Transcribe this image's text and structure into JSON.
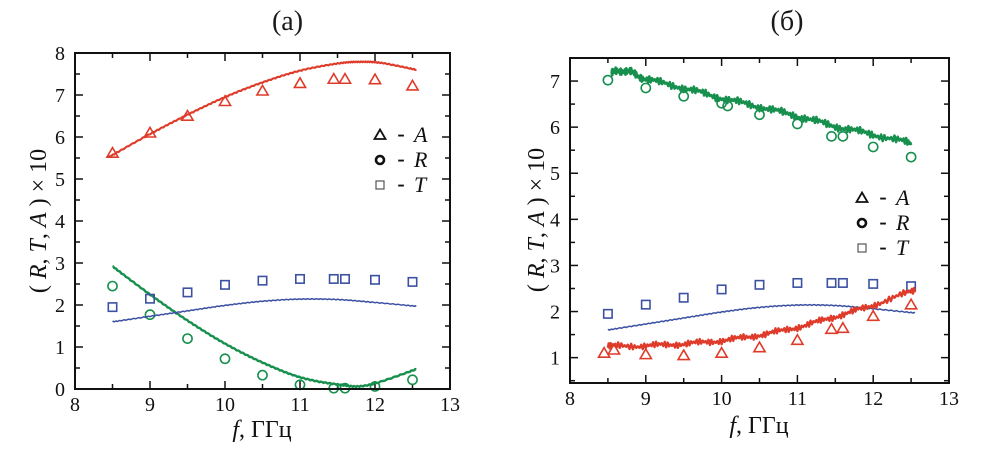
{
  "chart_data": [
    {
      "type": "line",
      "id": "a",
      "title": "(a)",
      "xlabel": "f, ГГц",
      "ylabel": "( R, T, A ) × 10",
      "xlabel_parts": [
        {
          "t": "f",
          "i": true
        },
        {
          "t": ", ГГц",
          "i": false
        }
      ],
      "ylabel_parts": [
        {
          "t": "( ",
          "i": false
        },
        {
          "t": "R",
          "i": true
        },
        {
          "t": ", ",
          "i": false
        },
        {
          "t": "T",
          "i": true
        },
        {
          "t": ", ",
          "i": false
        },
        {
          "t": "A",
          "i": true
        },
        {
          "t": " ) × 10",
          "i": false
        }
      ],
      "xlim": [
        8,
        13
      ],
      "ylim": [
        0,
        8
      ],
      "xticks": [
        8,
        9,
        10,
        11,
        12,
        13
      ],
      "yticks": [
        0,
        1,
        2,
        3,
        4,
        5,
        6,
        7,
        8
      ],
      "minor_step": 0.5,
      "grid": false,
      "legend": {
        "separator": "-",
        "rows": [
          {
            "symbol": "triangle",
            "label": "A"
          },
          {
            "symbol": "circle",
            "label": "R"
          },
          {
            "symbol": "square",
            "label": "T"
          }
        ]
      },
      "series": [
        {
          "name": "A-model-line",
          "type": "line",
          "color": "#df3b2a",
          "width": 2.1,
          "noise": 0.012,
          "points": [
            [
              8.45,
              5.52
            ],
            [
              9,
              6.07
            ],
            [
              9.5,
              6.53
            ],
            [
              10,
              6.95
            ],
            [
              10.5,
              7.3
            ],
            [
              11,
              7.58
            ],
            [
              11.5,
              7.75
            ],
            [
              11.8,
              7.79
            ],
            [
              12.1,
              7.76
            ],
            [
              12.55,
              7.6
            ]
          ]
        },
        {
          "name": "A-experiment-triangles",
          "type": "markers",
          "marker": "triangle",
          "color": "#df3b2a",
          "points": [
            [
              8.5,
              5.62
            ],
            [
              9,
              6.1
            ],
            [
              9.5,
              6.5
            ],
            [
              10,
              6.85
            ],
            [
              10.5,
              7.1
            ],
            [
              11,
              7.28
            ],
            [
              11.45,
              7.38
            ],
            [
              11.6,
              7.38
            ],
            [
              12,
              7.37
            ],
            [
              12.5,
              7.22
            ]
          ]
        },
        {
          "name": "R-model-line",
          "type": "line",
          "color": "#17904e",
          "width": 2.4,
          "noise": 0.012,
          "points": [
            [
              8.5,
              2.92
            ],
            [
              9,
              2.25
            ],
            [
              9.5,
              1.63
            ],
            [
              10,
              1.08
            ],
            [
              10.5,
              0.63
            ],
            [
              11,
              0.28
            ],
            [
              11.5,
              0.11
            ],
            [
              11.9,
              0.09
            ],
            [
              12.55,
              0.47
            ]
          ]
        },
        {
          "name": "R-experiment-circles",
          "type": "markers",
          "marker": "circle",
          "color": "#17904e",
          "points": [
            [
              8.5,
              2.45
            ],
            [
              9,
              1.77
            ],
            [
              9.5,
              1.2
            ],
            [
              10,
              0.72
            ],
            [
              10.5,
              0.33
            ],
            [
              11,
              0.1
            ],
            [
              11.45,
              0.02
            ],
            [
              11.6,
              0.02
            ],
            [
              12,
              0.06
            ],
            [
              12.5,
              0.22
            ]
          ]
        },
        {
          "name": "T-model-line",
          "type": "line",
          "color": "#3c51a2",
          "width": 1.5,
          "noise": 0.01,
          "points": [
            [
              8.5,
              1.6
            ],
            [
              9,
              1.73
            ],
            [
              9.5,
              1.86
            ],
            [
              10,
              1.99
            ],
            [
              10.5,
              2.09
            ],
            [
              11,
              2.14
            ],
            [
              11.5,
              2.13
            ],
            [
              12,
              2.06
            ],
            [
              12.55,
              1.97
            ]
          ]
        },
        {
          "name": "T-experiment-squares",
          "type": "markers",
          "marker": "square",
          "color": "#3c51a2",
          "points": [
            [
              8.5,
              1.95
            ],
            [
              9,
              2.15
            ],
            [
              9.5,
              2.3
            ],
            [
              10,
              2.48
            ],
            [
              10.5,
              2.58
            ],
            [
              11,
              2.62
            ],
            [
              11.45,
              2.62
            ],
            [
              11.6,
              2.62
            ],
            [
              12,
              2.6
            ],
            [
              12.5,
              2.55
            ]
          ]
        }
      ]
    },
    {
      "type": "line",
      "id": "b",
      "title": "(б)",
      "xlabel": "f, ГГц",
      "ylabel": "( R, T, A ) × 10",
      "xlabel_parts": [
        {
          "t": "f",
          "i": true
        },
        {
          "t": ", ГГц",
          "i": false
        }
      ],
      "ylabel_parts": [
        {
          "t": "( ",
          "i": false
        },
        {
          "t": "R",
          "i": true
        },
        {
          "t": ", ",
          "i": false
        },
        {
          "t": "T",
          "i": true
        },
        {
          "t": ", ",
          "i": false
        },
        {
          "t": "A",
          "i": true
        },
        {
          "t": " ) × 10",
          "i": false
        }
      ],
      "xlim": [
        8,
        13
      ],
      "ylim": [
        0.45,
        7.5
      ],
      "xticks": [
        8,
        9,
        10,
        11,
        12,
        13
      ],
      "yticks": [
        1,
        2,
        3,
        4,
        5,
        6,
        7
      ],
      "minor_step": 0.5,
      "grid": false,
      "legend": {
        "separator": "-",
        "rows": [
          {
            "symbol": "triangle",
            "label": "A"
          },
          {
            "symbol": "circle",
            "label": "R"
          },
          {
            "symbol": "square",
            "label": "T"
          }
        ]
      },
      "series": [
        {
          "name": "R-model-line",
          "type": "line",
          "color": "#17904e",
          "width": 2.6,
          "noise": 0.07,
          "points": [
            [
              8.55,
              7.18
            ],
            [
              8.75,
              7.22
            ],
            [
              9,
              7.05
            ],
            [
              9.5,
              6.85
            ],
            [
              10,
              6.63
            ],
            [
              10.5,
              6.44
            ],
            [
              11,
              6.24
            ],
            [
              11.5,
              6.02
            ],
            [
              12,
              5.84
            ],
            [
              12.5,
              5.65
            ]
          ]
        },
        {
          "name": "R-experiment-circles",
          "type": "markers",
          "marker": "circle",
          "color": "#17904e",
          "points": [
            [
              8.5,
              7.02
            ],
            [
              9,
              6.85
            ],
            [
              9.5,
              6.67
            ],
            [
              10,
              6.52
            ],
            [
              10.08,
              6.46
            ],
            [
              10.5,
              6.27
            ],
            [
              11,
              6.07
            ],
            [
              11.45,
              5.8
            ],
            [
              11.6,
              5.8
            ],
            [
              12,
              5.57
            ],
            [
              12.5,
              5.35
            ]
          ]
        },
        {
          "name": "T-model-line",
          "type": "line",
          "color": "#3c51a2",
          "width": 1.5,
          "noise": 0.01,
          "points": [
            [
              8.5,
              1.6
            ],
            [
              9,
              1.73
            ],
            [
              9.5,
              1.86
            ],
            [
              10,
              1.99
            ],
            [
              10.5,
              2.09
            ],
            [
              11,
              2.14
            ],
            [
              11.5,
              2.13
            ],
            [
              12,
              2.06
            ],
            [
              12.55,
              1.97
            ]
          ]
        },
        {
          "name": "T-experiment-squares",
          "type": "markers",
          "marker": "square",
          "color": "#3c51a2",
          "points": [
            [
              8.5,
              1.95
            ],
            [
              9,
              2.15
            ],
            [
              9.5,
              2.3
            ],
            [
              10,
              2.48
            ],
            [
              10.5,
              2.58
            ],
            [
              11,
              2.62
            ],
            [
              11.45,
              2.62
            ],
            [
              11.6,
              2.62
            ],
            [
              12,
              2.6
            ],
            [
              12.5,
              2.55
            ]
          ]
        },
        {
          "name": "A-model-line",
          "type": "line",
          "color": "#df3b2a",
          "width": 2.4,
          "noise": 0.06,
          "points": [
            [
              8.5,
              1.25
            ],
            [
              9,
              1.26
            ],
            [
              9.5,
              1.3
            ],
            [
              10,
              1.37
            ],
            [
              10.5,
              1.49
            ],
            [
              11,
              1.66
            ],
            [
              11.5,
              1.89
            ],
            [
              12,
              2.14
            ],
            [
              12.55,
              2.47
            ]
          ]
        },
        {
          "name": "A-experiment-triangles",
          "type": "markers",
          "marker": "triangle",
          "color": "#df3b2a",
          "points": [
            [
              8.45,
              1.1
            ],
            [
              8.58,
              1.17
            ],
            [
              9,
              1.07
            ],
            [
              9.5,
              1.05
            ],
            [
              10,
              1.1
            ],
            [
              10.5,
              1.22
            ],
            [
              11,
              1.38
            ],
            [
              11.45,
              1.62
            ],
            [
              11.6,
              1.64
            ],
            [
              12,
              1.9
            ],
            [
              12.5,
              2.15
            ]
          ]
        }
      ]
    }
  ]
}
